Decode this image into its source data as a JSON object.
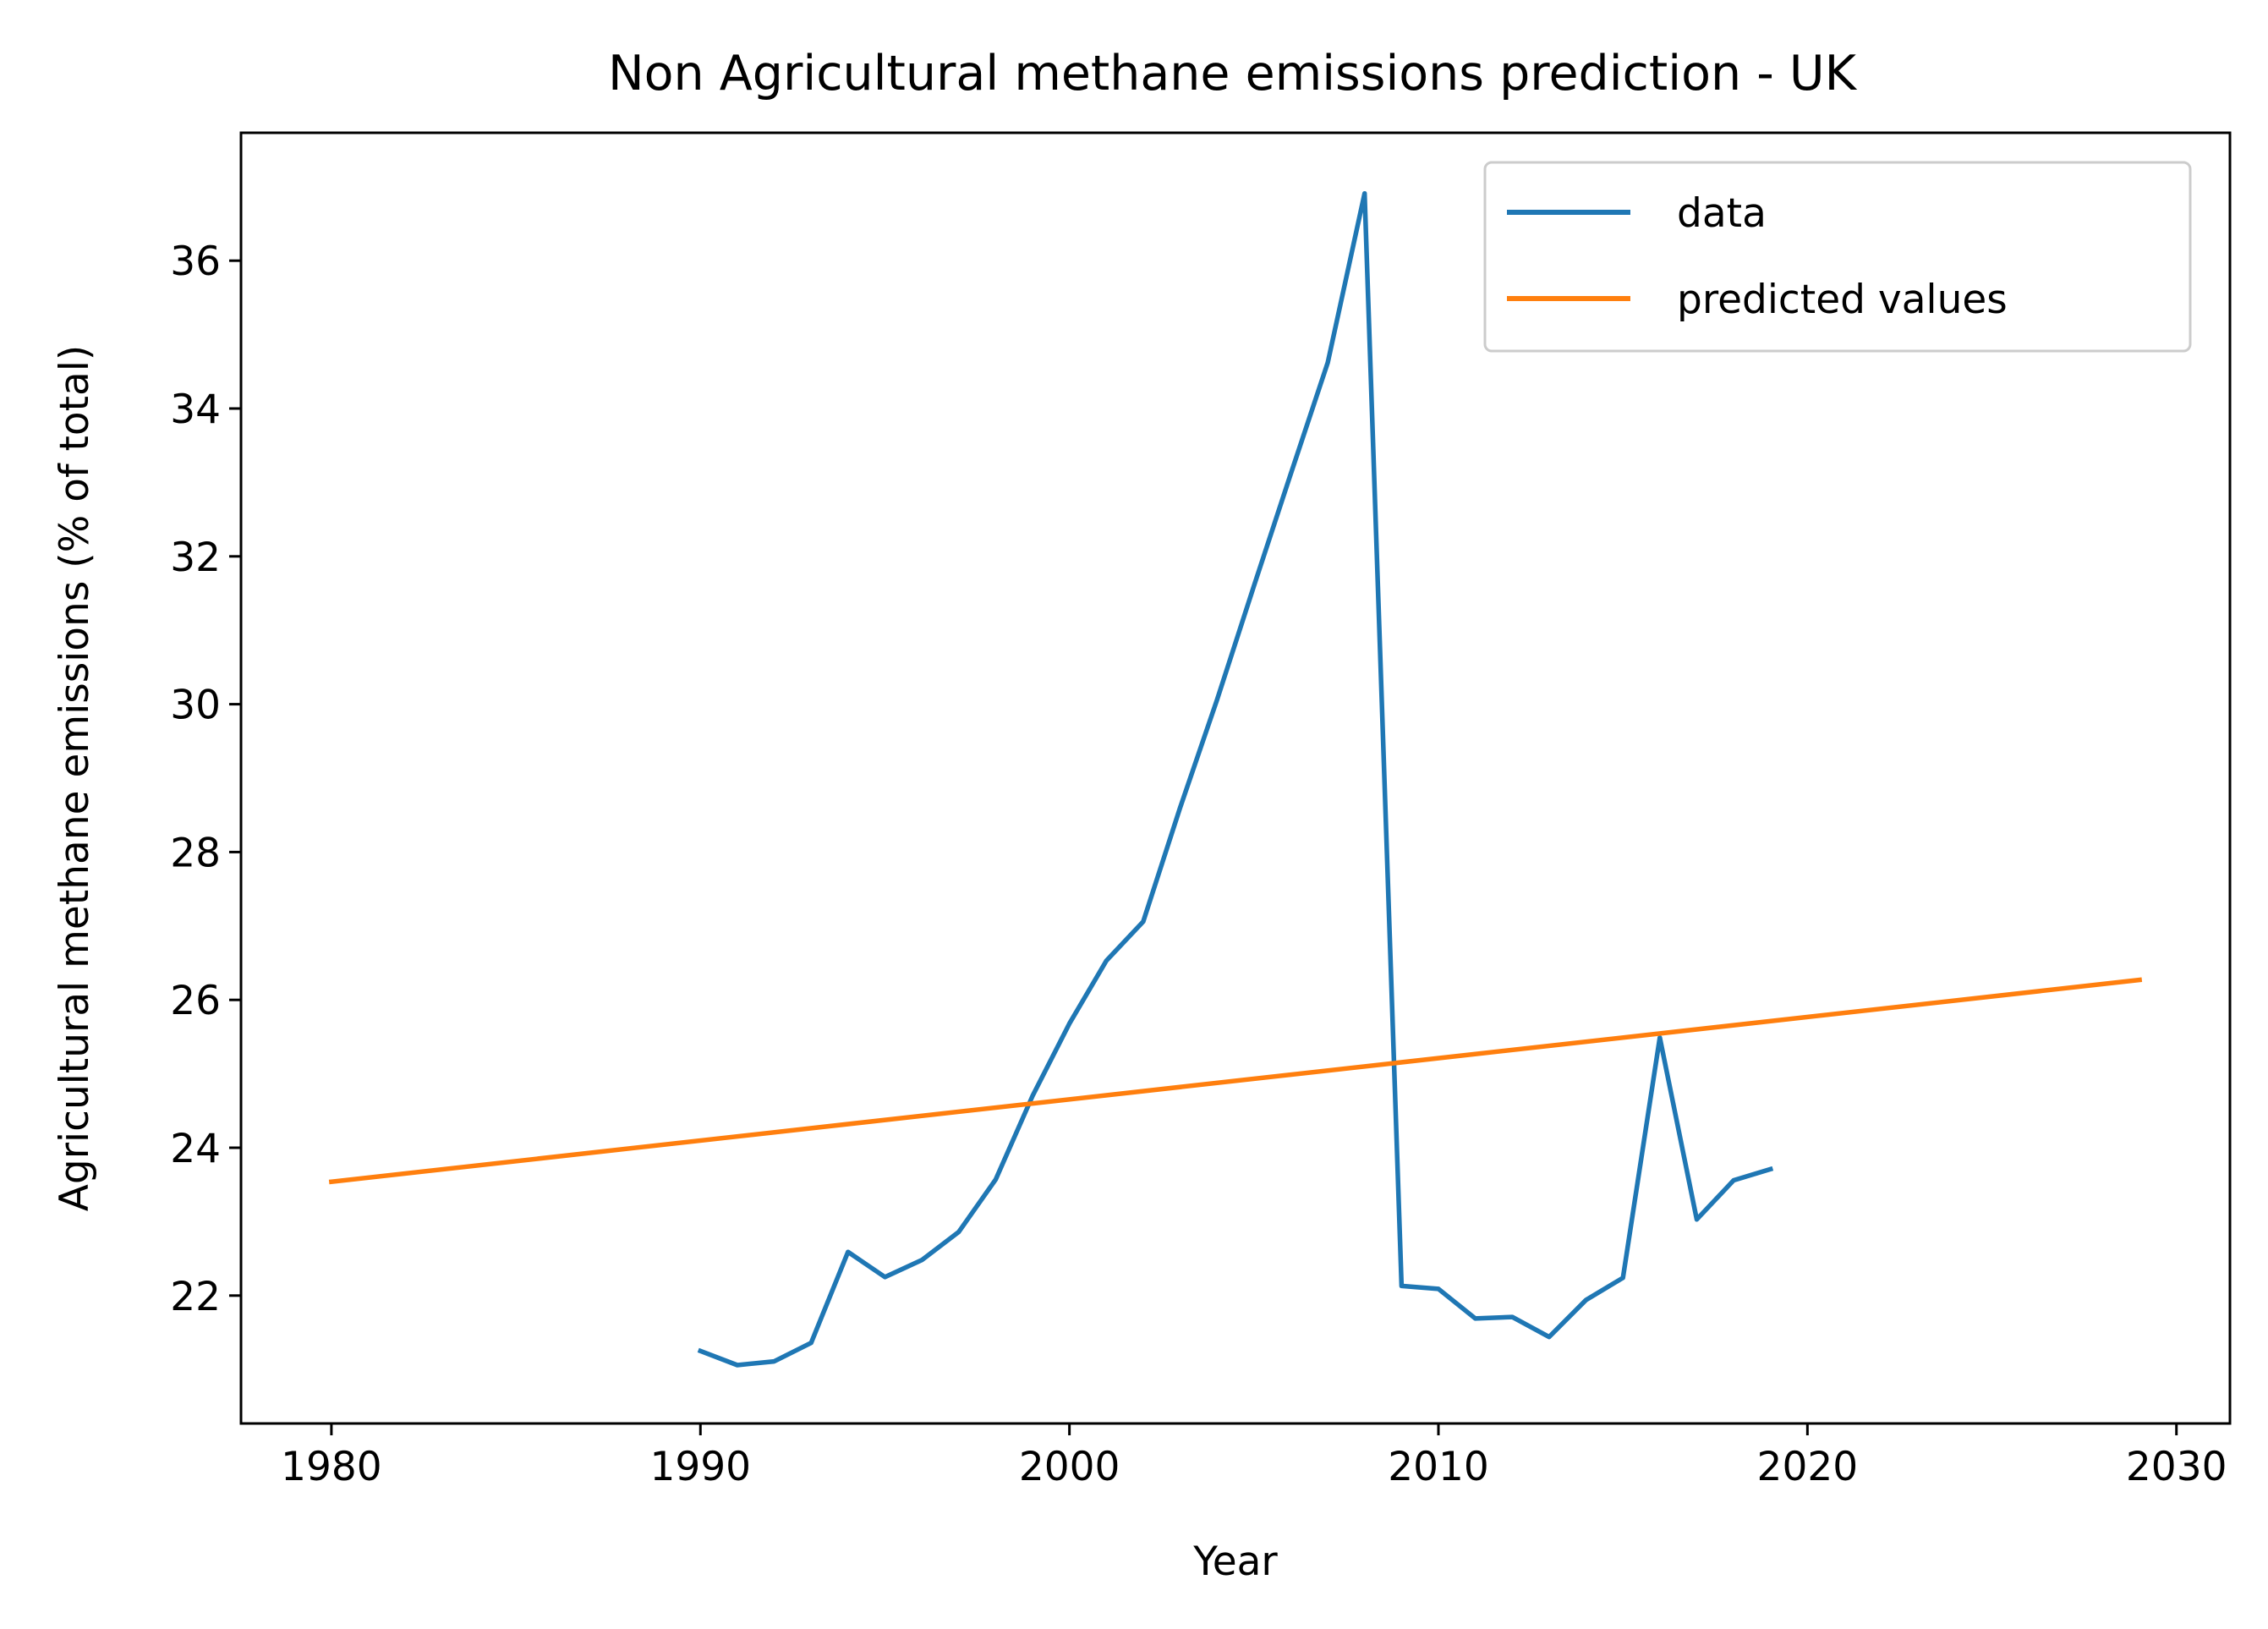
{
  "chart_data": {
    "type": "line",
    "title": "Non Agricultural methane emissions prediction - UK",
    "xlabel": "Year",
    "ylabel": "Agricultural methane emissions (% of total)",
    "xlim": [
      1977.55,
      2031.45
    ],
    "ylim": [
      20.27,
      37.73
    ],
    "x_ticks": [
      1980,
      1990,
      2000,
      2010,
      2020,
      2030
    ],
    "y_ticks": [
      22,
      24,
      26,
      28,
      30,
      32,
      34,
      36
    ],
    "grid": false,
    "legend_position": "top-right",
    "series": [
      {
        "name": "data",
        "color": "#1f77b4",
        "x": [
          1990,
          1991,
          1992,
          1993,
          1994,
          1995,
          1996,
          1997,
          1998,
          1999,
          2000,
          2001,
          2002,
          2003,
          2004,
          2005,
          2006,
          2007,
          2008,
          2009,
          2010,
          2011,
          2012,
          2013,
          2014,
          2015,
          2016,
          2017,
          2018,
          2019
        ],
        "y": [
          21.25,
          21.06,
          21.11,
          21.36,
          22.59,
          22.25,
          22.48,
          22.86,
          23.57,
          24.7,
          25.68,
          26.53,
          27.06,
          28.6,
          30.06,
          31.6,
          33.12,
          34.62,
          36.91,
          22.13,
          22.09,
          21.69,
          21.71,
          21.44,
          21.94,
          22.24,
          25.49,
          23.03,
          23.56,
          23.71
        ]
      },
      {
        "name": "predicted values",
        "color": "#ff7f0e",
        "x": [
          1980,
          2029
        ],
        "y": [
          23.54,
          26.27
        ]
      }
    ]
  }
}
